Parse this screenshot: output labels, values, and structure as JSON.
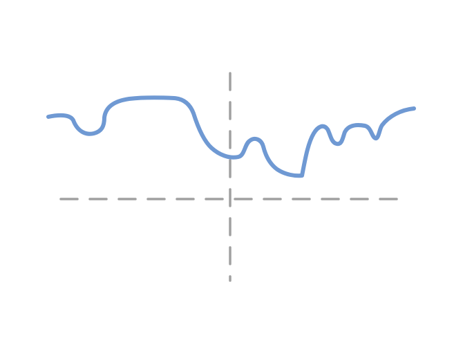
{
  "diagram": {
    "type": "line-sketch",
    "axes": {
      "color": "#a0a0a0",
      "style": "dashed",
      "labels": []
    },
    "curve": {
      "color": "#6f99d3"
    }
  }
}
